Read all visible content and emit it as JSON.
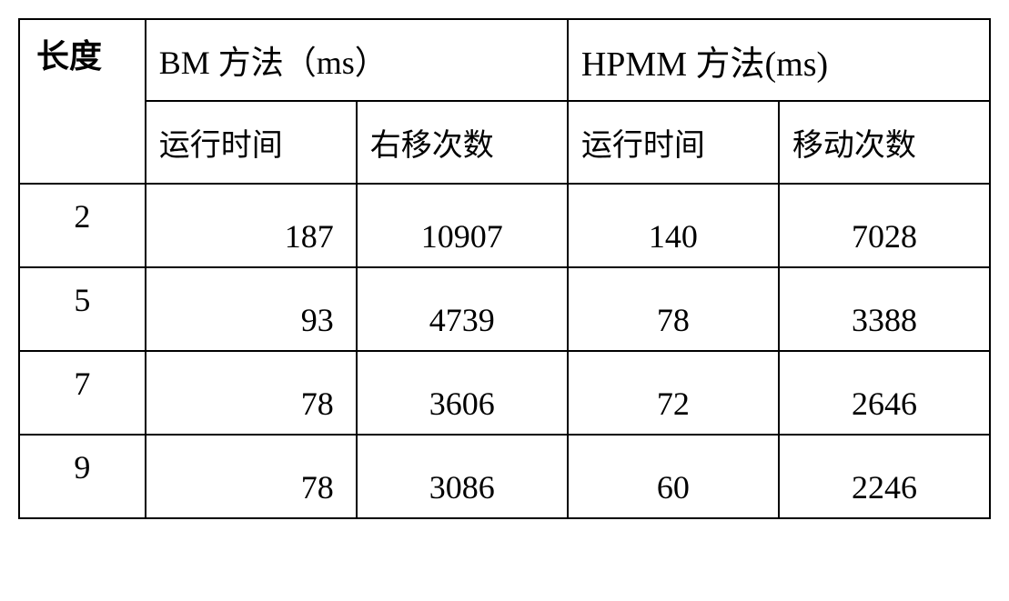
{
  "table": {
    "type": "table",
    "colors": {
      "background": "#ffffff",
      "border": "#000000",
      "text": "#000000"
    },
    "typography": {
      "header_fontsize": 36,
      "subheader_fontsize": 34,
      "cell_fontsize": 36,
      "font_family": "SimSun"
    },
    "border_width": 2,
    "columns": [
      {
        "key": "length",
        "width_pct": 13
      },
      {
        "key": "bm_time",
        "width_pct": 21.75
      },
      {
        "key": "bm_shifts",
        "width_pct": 21.75
      },
      {
        "key": "hpmm_time",
        "width_pct": 21.75
      },
      {
        "key": "hpmm_shifts",
        "width_pct": 21.75
      }
    ],
    "headers": {
      "length": "长度",
      "bm_method": "BM 方法（ms）",
      "hpmm_method": "HPMM 方法(ms)",
      "bm_runtime": "运行时间",
      "bm_shifts": "右移次数",
      "hpmm_runtime": "运行时间",
      "hpmm_shifts": "移动次数"
    },
    "rows": [
      {
        "length": "2",
        "bm_time": "187",
        "bm_shifts": "10907",
        "hpmm_time": "140",
        "hpmm_shifts": "7028"
      },
      {
        "length": "5",
        "bm_time": "93",
        "bm_shifts": "4739",
        "hpmm_time": "78",
        "hpmm_shifts": "3388"
      },
      {
        "length": "7",
        "bm_time": "78",
        "bm_shifts": "3606",
        "hpmm_time": "72",
        "hpmm_shifts": "2646"
      },
      {
        "length": "9",
        "bm_time": "78",
        "bm_shifts": "3086",
        "hpmm_time": "60",
        "hpmm_shifts": "2246"
      }
    ]
  }
}
